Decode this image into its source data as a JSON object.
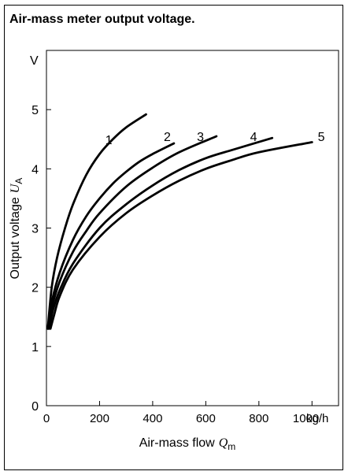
{
  "chart_data": {
    "type": "line",
    "title": "Air-mass meter output voltage.",
    "xlabel": "Air-mass flow",
    "xlabel_symbol": "Q",
    "xlabel_sub": "m",
    "x_unit": "kg/h",
    "ylabel": "Output voltage",
    "ylabel_symbol": "U",
    "ylabel_sub": "A",
    "y_unit": "V",
    "xlim": [
      0,
      1100
    ],
    "ylim": [
      0,
      6
    ],
    "xticks": [
      "0",
      "200",
      "400",
      "600",
      "800",
      "1000"
    ],
    "yticks": [
      "0",
      "1",
      "2",
      "3",
      "4",
      "5"
    ],
    "grid": false,
    "series": [
      {
        "name": "1",
        "x": [
          5,
          20,
          40,
          70,
          100,
          150,
          200,
          250,
          300,
          375
        ],
        "y": [
          1.3,
          2.0,
          2.5,
          3.0,
          3.4,
          3.9,
          4.25,
          4.5,
          4.7,
          4.92
        ]
      },
      {
        "name": "2",
        "x": [
          5,
          20,
          50,
          100,
          150,
          200,
          250,
          300,
          350,
          400,
          480
        ],
        "y": [
          1.3,
          1.75,
          2.25,
          2.8,
          3.2,
          3.5,
          3.75,
          3.95,
          4.12,
          4.25,
          4.43
        ]
      },
      {
        "name": "3",
        "x": [
          8,
          20,
          50,
          100,
          150,
          200,
          300,
          400,
          500,
          640
        ],
        "y": [
          1.3,
          1.65,
          2.1,
          2.6,
          2.95,
          3.25,
          3.7,
          4.02,
          4.28,
          4.55
        ]
      },
      {
        "name": "4",
        "x": [
          10,
          25,
          50,
          100,
          200,
          300,
          400,
          500,
          600,
          700,
          850
        ],
        "y": [
          1.3,
          1.62,
          1.95,
          2.4,
          3.0,
          3.4,
          3.72,
          3.98,
          4.18,
          4.32,
          4.52
        ]
      },
      {
        "name": "5",
        "x": [
          15,
          30,
          50,
          100,
          200,
          300,
          400,
          500,
          600,
          700,
          800,
          1000
        ],
        "y": [
          1.3,
          1.55,
          1.85,
          2.3,
          2.85,
          3.25,
          3.55,
          3.8,
          4.0,
          4.15,
          4.28,
          4.45
        ]
      }
    ],
    "curve_labels": [
      {
        "text": "1",
        "x": 235,
        "y": 4.5
      },
      {
        "text": "2",
        "x": 455,
        "y": 4.55
      },
      {
        "text": "3",
        "x": 580,
        "y": 4.55
      },
      {
        "text": "4",
        "x": 780,
        "y": 4.55
      },
      {
        "text": "5",
        "x": 1035,
        "y": 4.55
      }
    ]
  }
}
